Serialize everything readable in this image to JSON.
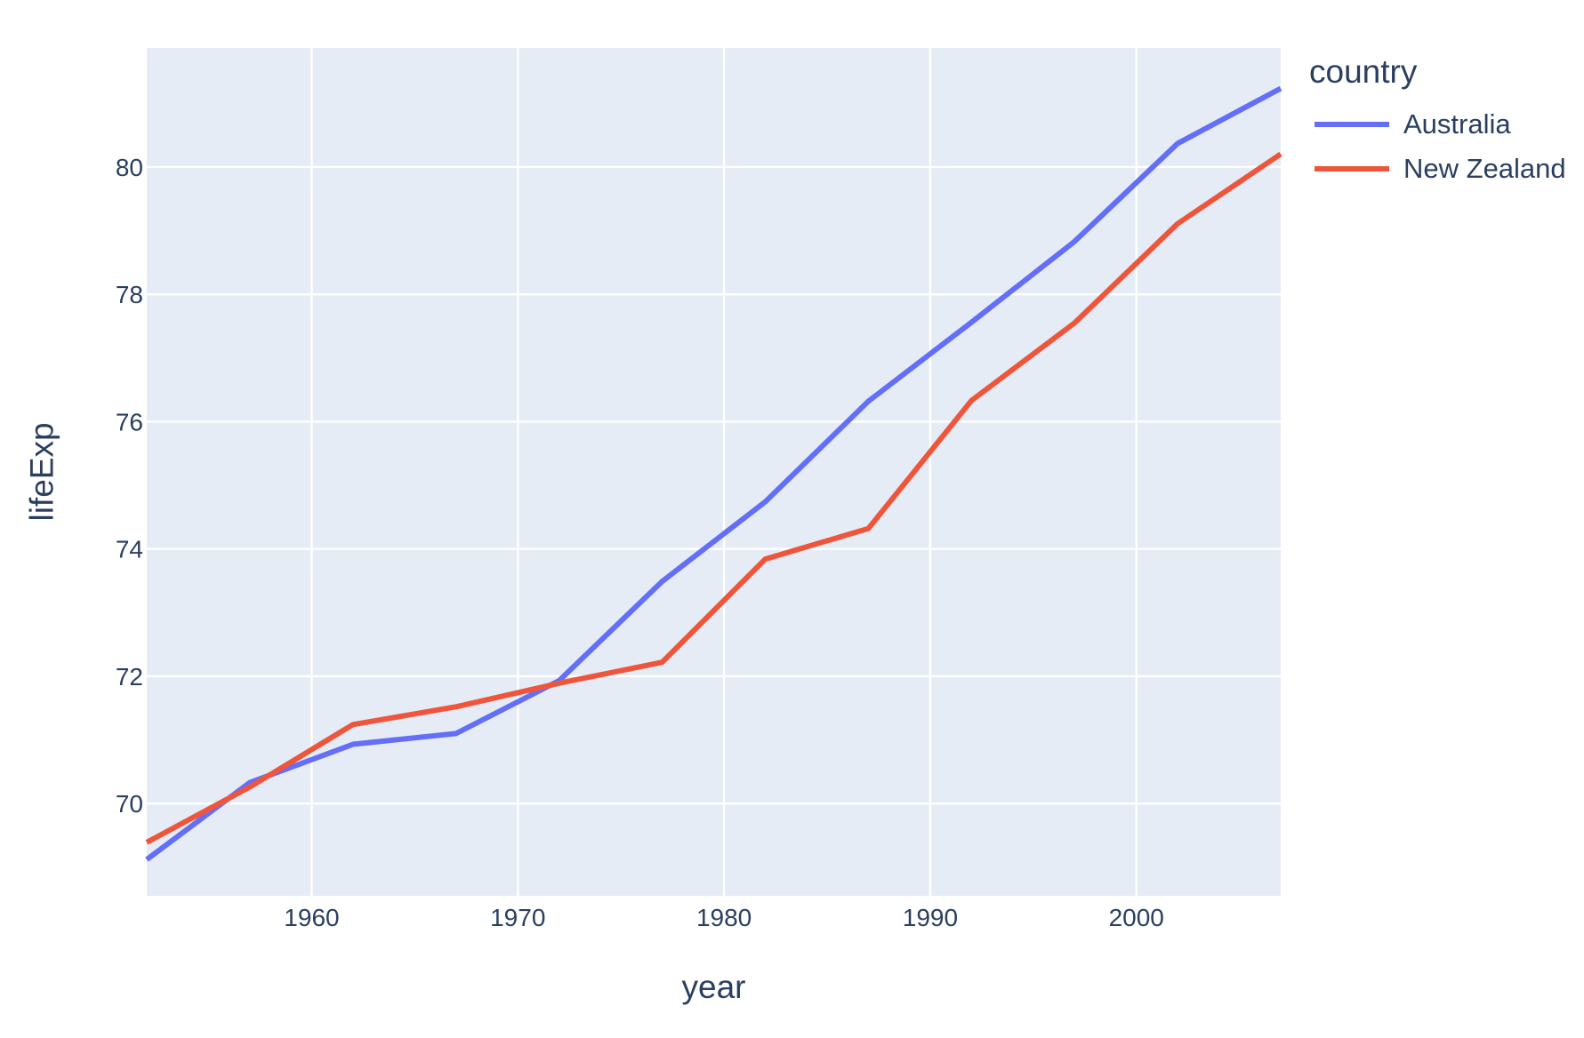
{
  "chart_data": {
    "type": "line",
    "title": "",
    "xlabel": "year",
    "ylabel": "lifeExp",
    "legend_title": "country",
    "x": [
      1952,
      1957,
      1962,
      1967,
      1972,
      1977,
      1982,
      1987,
      1992,
      1997,
      2002,
      2007
    ],
    "series": [
      {
        "name": "Australia",
        "color": "#636EFA",
        "values": [
          69.12,
          70.33,
          70.93,
          71.1,
          71.93,
          73.49,
          74.74,
          76.32,
          77.56,
          78.83,
          80.37,
          81.235
        ]
      },
      {
        "name": "New Zealand",
        "color": "#EF553B",
        "values": [
          69.39,
          70.26,
          71.24,
          71.52,
          71.89,
          72.22,
          73.84,
          74.32,
          76.33,
          77.55,
          79.11,
          80.204
        ]
      }
    ],
    "x_ticks": [
      1960,
      1970,
      1980,
      1990,
      2000
    ],
    "y_ticks": [
      70,
      72,
      74,
      76,
      78,
      80
    ],
    "x_range": [
      1952,
      2007
    ],
    "y_range": [
      68.55,
      81.87
    ],
    "grid": true,
    "legend_position": "right",
    "line_width": 6,
    "colors": {
      "plot_bg": "#E5ECF6",
      "grid": "#FFFFFF",
      "text": "#2A3F5F"
    }
  }
}
